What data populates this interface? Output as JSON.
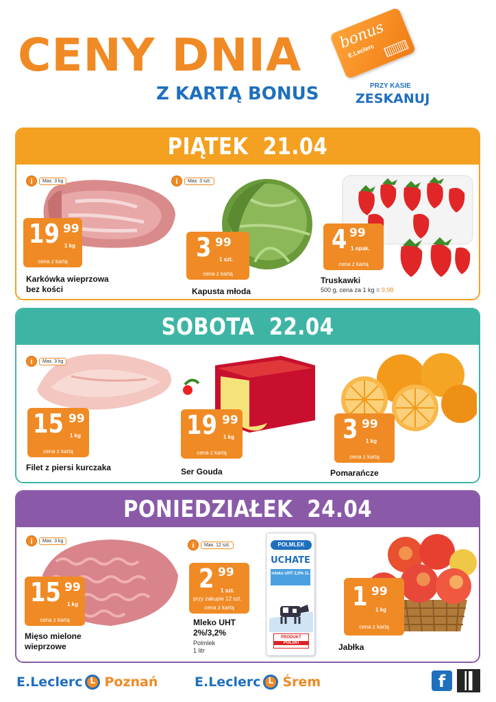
{
  "header": {
    "title": "CENY DNIA",
    "subtitle": "Z KARTĄ BONUS",
    "card_brand": "bonus",
    "card_sub": "E.Leclerc",
    "scan_small": "PRZY KASIE",
    "scan_big": "ZESKANUJ"
  },
  "colors": {
    "orange": "#f08a24",
    "blue": "#1f6fbf",
    "friday": "#f4a020",
    "saturday": "#3eb5a4",
    "monday": "#8a5aa9"
  },
  "days": [
    {
      "title": "PIĄTEK  21.04",
      "products": [
        {
          "limit": "Max. 3 kg",
          "zl": "19",
          "gr": "99",
          "unit": "1 kg",
          "card": "cena z kartą",
          "name1": "Karkówka wieprzowa",
          "name2": "bez kości",
          "image": "pork-neck-image"
        },
        {
          "limit": "Max. 3 szt.",
          "zl": "3",
          "gr": "99",
          "unit": "1 szt.",
          "card": "cena z kartą",
          "name1": "Kapusta młoda",
          "image": "cabbage-image"
        },
        {
          "zl": "4",
          "gr": "99",
          "unit": "1 opak.",
          "card": "cena z kartą",
          "name1": "Truskawki",
          "desc": "500 g, cena za 1 kg =",
          "desc_price": "9,98",
          "image": "strawberries-image"
        }
      ]
    },
    {
      "title": "SOBOTA  22.04",
      "products": [
        {
          "limit": "Max. 3 kg",
          "zl": "15",
          "gr": "99",
          "unit": "1 kg",
          "card": "cena z kartą",
          "name1": "Filet z piersi kurczaka",
          "image": "chicken-fillet-image"
        },
        {
          "zl": "19",
          "gr": "99",
          "unit": "1 kg",
          "card": "cena z kartą",
          "name1": "Ser Gouda",
          "image": "gouda-cheese-image"
        },
        {
          "zl": "3",
          "gr": "99",
          "unit": "1 kg",
          "card": "cena z kartą",
          "name1": "Pomarańcze",
          "image": "oranges-image"
        }
      ]
    },
    {
      "title": "PONIEDZIAŁEK  24.04",
      "products": [
        {
          "limit": "Max. 3 kg",
          "zl": "15",
          "gr": "99",
          "unit": "1 kg",
          "card": "cena z kartą",
          "name1": "Mięso mielone",
          "name2": "wieprzowe",
          "image": "minced-meat-image"
        },
        {
          "limit": "Max. 12 szt.",
          "zl": "2",
          "gr": "99",
          "unit": "1 szt.",
          "unit2": "przy zakupie 12 szt.",
          "card": "cena z kartą",
          "name1": "Mleko UHT",
          "name2": "2%/3,2%",
          "desc": "Polmlek",
          "desc2": "1 litr",
          "image": "milk-carton-image"
        },
        {
          "zl": "1",
          "gr": "99",
          "unit": "1 kg",
          "card": "cena z kartą",
          "name1": "Jabłka",
          "image": "apples-image"
        }
      ]
    }
  ],
  "milk_carton": {
    "brand": "POLMLEK",
    "name": "UCHATE",
    "fat": "mleko UHT 2,0% 1L",
    "badge1": "PRODUKT",
    "badge2": "POLSKI"
  },
  "footer": {
    "logo_brand": "E.Leclerc",
    "store1": "Poznań",
    "store2": "Śrem",
    "fb_icon": "facebook-icon",
    "qr": "qr-code"
  }
}
